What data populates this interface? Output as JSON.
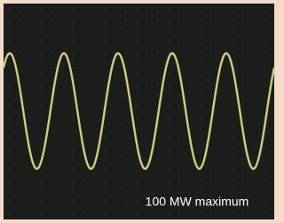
{
  "caption": "100 MW maximum"
}
